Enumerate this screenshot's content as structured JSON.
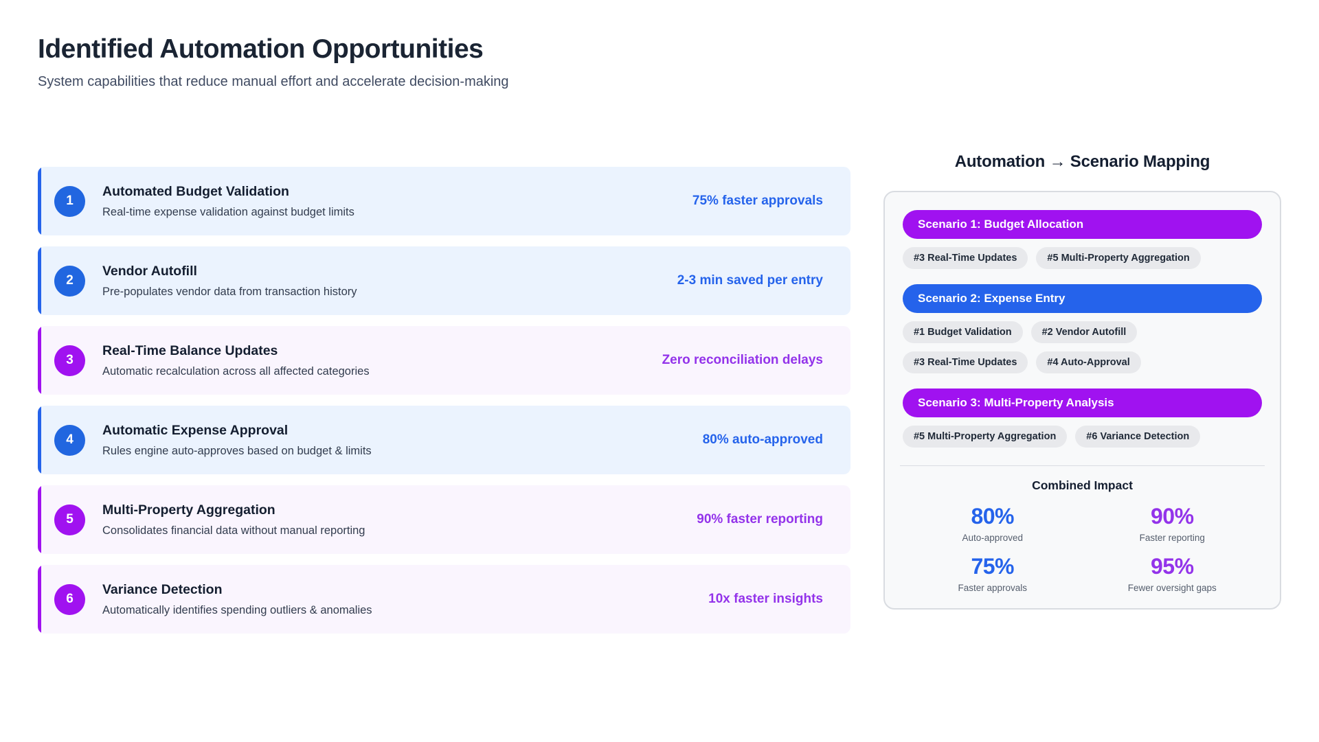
{
  "page": {
    "title": "Identified Automation Opportunities",
    "subtitle": "System capabilities that reduce manual effort and accelerate decision-making"
  },
  "colors": {
    "blue_accent": "#2563eb",
    "purple_accent": "#9333ea",
    "purple_banner": "#a012f0",
    "blue_card_bg": "#ebf3fe",
    "purple_card_bg": "#faf5fe",
    "panel_bg": "#f8f9fa",
    "chip_bg": "#e8e9ec"
  },
  "opportunities": [
    {
      "number": "1",
      "title": "Automated Budget Validation",
      "description": "Real-time expense validation against budget limits",
      "metric": "75% faster approvals",
      "theme": "blue"
    },
    {
      "number": "2",
      "title": "Vendor Autofill",
      "description": "Pre-populates vendor data from transaction history",
      "metric": "2-3 min saved per entry",
      "theme": "blue"
    },
    {
      "number": "3",
      "title": "Real-Time Balance Updates",
      "description": "Automatic recalculation across all affected categories",
      "metric": "Zero reconciliation delays",
      "theme": "purple"
    },
    {
      "number": "4",
      "title": "Automatic Expense Approval",
      "description": "Rules engine auto-approves based on budget & limits",
      "metric": "80% auto-approved",
      "theme": "blue"
    },
    {
      "number": "5",
      "title": "Multi-Property Aggregation",
      "description": "Consolidates financial data without manual reporting",
      "metric": "90% faster reporting",
      "theme": "purple"
    },
    {
      "number": "6",
      "title": "Variance Detection",
      "description": "Automatically identifies spending outliers & anomalies",
      "metric": "10x faster insights",
      "theme": "purple"
    }
  ],
  "mapping": {
    "title": "Automation → Scenario Mapping",
    "scenarios": [
      {
        "label": "Scenario 1: Budget Allocation",
        "theme": "purple",
        "chips": [
          "#3 Real-Time Updates",
          "#5 Multi-Property Aggregation"
        ]
      },
      {
        "label": "Scenario 2: Expense Entry",
        "theme": "blue",
        "chips": [
          "#1 Budget Validation",
          "#2 Vendor Autofill",
          "#3 Real-Time Updates",
          "#4 Auto-Approval"
        ]
      },
      {
        "label": "Scenario 3: Multi-Property Analysis",
        "theme": "purple",
        "chips": [
          "#5 Multi-Property Aggregation",
          "#6 Variance Detection"
        ]
      }
    ],
    "impact": {
      "title": "Combined Impact",
      "stats": [
        {
          "value": "80%",
          "label": "Auto-approved",
          "theme": "blue"
        },
        {
          "value": "90%",
          "label": "Faster reporting",
          "theme": "purple"
        },
        {
          "value": "75%",
          "label": "Faster approvals",
          "theme": "blue"
        },
        {
          "value": "95%",
          "label": "Fewer oversight gaps",
          "theme": "purple"
        }
      ]
    }
  }
}
